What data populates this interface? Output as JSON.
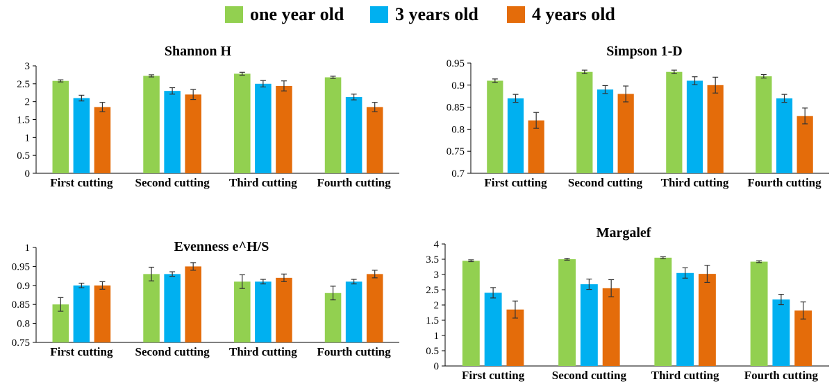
{
  "legend": [
    {
      "name": "one year old",
      "color": "#92d050"
    },
    {
      "name": "3 years old",
      "color": "#00b0f0"
    },
    {
      "name": "4 years old",
      "color": "#e46c0a"
    }
  ],
  "chart_data": [
    {
      "type": "bar",
      "title": "Shannon H",
      "categories": [
        "First cutting",
        "Second cutting",
        "Third cutting",
        "Fourth cutting"
      ],
      "ylim": [
        0,
        3
      ],
      "yticks": [
        "0",
        "0.5",
        "1",
        "1.5",
        "2",
        "2.5",
        "3"
      ],
      "series": [
        {
          "name": "one year old",
          "values": [
            2.58,
            2.72,
            2.78,
            2.68
          ],
          "errors": [
            0.03,
            0.03,
            0.04,
            0.03
          ]
        },
        {
          "name": "3 years old",
          "values": [
            2.1,
            2.3,
            2.5,
            2.13
          ],
          "errors": [
            0.08,
            0.09,
            0.09,
            0.08
          ]
        },
        {
          "name": "4 years old",
          "values": [
            1.85,
            2.2,
            2.44,
            1.85
          ],
          "errors": [
            0.13,
            0.14,
            0.14,
            0.13
          ]
        }
      ]
    },
    {
      "type": "bar",
      "title": "Simpson 1-D",
      "categories": [
        "First cutting",
        "Second cutting",
        "Third cutting",
        "Fourth cutting"
      ],
      "ylim": [
        0.7,
        0.95
      ],
      "yticks": [
        "0.7",
        "0.75",
        "0.8",
        "0.85",
        "0.9",
        "0.95"
      ],
      "series": [
        {
          "name": "one year old",
          "values": [
            0.91,
            0.93,
            0.93,
            0.92
          ],
          "errors": [
            0.004,
            0.004,
            0.004,
            0.004
          ]
        },
        {
          "name": "3 years old",
          "values": [
            0.87,
            0.89,
            0.91,
            0.87
          ],
          "errors": [
            0.009,
            0.009,
            0.009,
            0.009
          ]
        },
        {
          "name": "4 years old",
          "values": [
            0.82,
            0.88,
            0.9,
            0.83
          ],
          "errors": [
            0.018,
            0.018,
            0.018,
            0.018
          ]
        }
      ]
    },
    {
      "type": "bar",
      "title": "Evenness e^H/S",
      "categories": [
        "First cutting",
        "Second cutting",
        "Third cutting",
        "Fourth cutting"
      ],
      "ylim": [
        0.75,
        1
      ],
      "yticks": [
        "0.75",
        "0.8",
        "0.85",
        "0.9",
        "0.95",
        "1"
      ],
      "series": [
        {
          "name": "one year old",
          "values": [
            0.85,
            0.93,
            0.91,
            0.88
          ],
          "errors": [
            0.018,
            0.018,
            0.018,
            0.018
          ]
        },
        {
          "name": "3 years old",
          "values": [
            0.9,
            0.93,
            0.91,
            0.91
          ],
          "errors": [
            0.006,
            0.006,
            0.006,
            0.006
          ]
        },
        {
          "name": "4 years old",
          "values": [
            0.9,
            0.95,
            0.92,
            0.93
          ],
          "errors": [
            0.01,
            0.01,
            0.01,
            0.01
          ]
        }
      ]
    },
    {
      "type": "bar",
      "title": "Margalef",
      "categories": [
        "First cutting",
        "Second cutting",
        "Third cutting",
        "Fourth cutting"
      ],
      "ylim": [
        0,
        4
      ],
      "yticks": [
        "0",
        "0.5",
        "1",
        "1.5",
        "2",
        "2.5",
        "3",
        "3.5",
        "4"
      ],
      "series": [
        {
          "name": "one year old",
          "values": [
            3.45,
            3.5,
            3.55,
            3.42
          ],
          "errors": [
            0.03,
            0.03,
            0.03,
            0.03
          ]
        },
        {
          "name": "3 years old",
          "values": [
            2.4,
            2.68,
            3.05,
            2.18
          ],
          "errors": [
            0.17,
            0.17,
            0.17,
            0.17
          ]
        },
        {
          "name": "4 years old",
          "values": [
            1.85,
            2.55,
            3.02,
            1.82
          ],
          "errors": [
            0.28,
            0.28,
            0.28,
            0.28
          ]
        }
      ]
    }
  ]
}
